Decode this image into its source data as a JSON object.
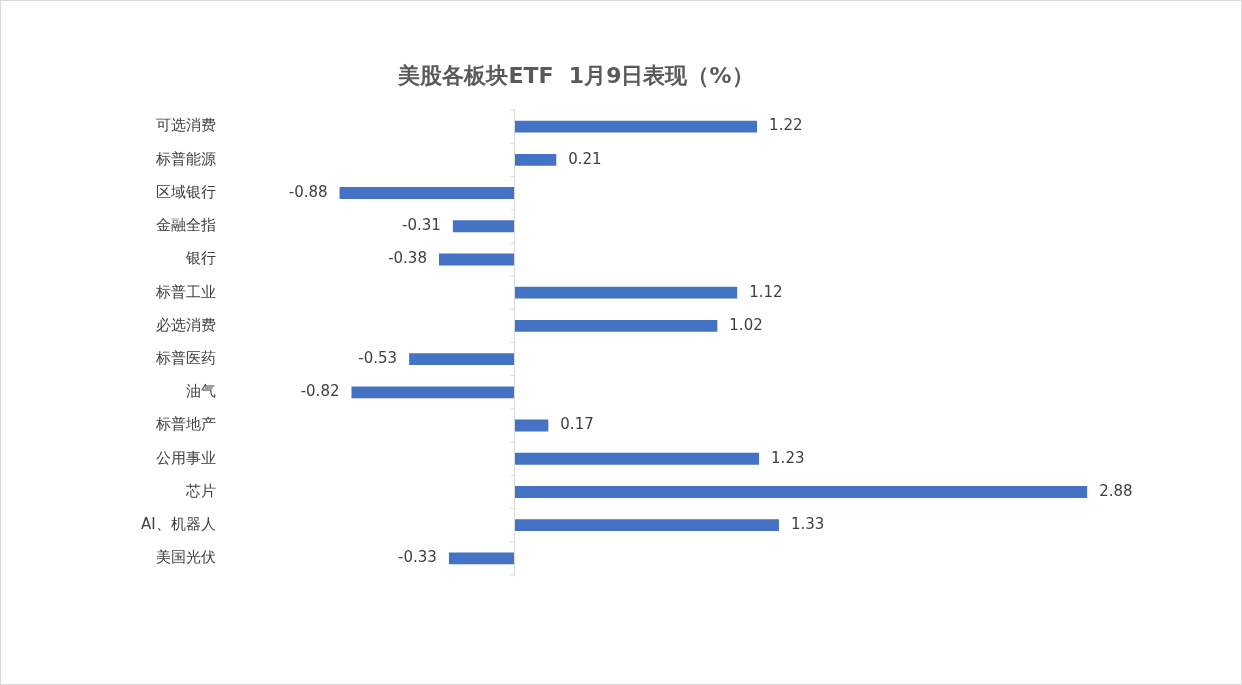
{
  "chart_data": {
    "type": "bar",
    "title": "美股各板块ETF  1月9日表现（%）",
    "orientation": "horizontal",
    "categories": [
      "可选消费",
      "标普能源",
      "区域银行",
      "金融全指",
      "银行",
      "标普工业",
      "必选消费",
      "标普医药",
      "油气",
      "标普地产",
      "公用事业",
      "芯片",
      "AI、机器人",
      "美国光伏"
    ],
    "values": [
      1.22,
      0.21,
      -0.88,
      -0.31,
      -0.38,
      1.12,
      1.02,
      -0.53,
      -0.82,
      0.17,
      1.23,
      2.88,
      1.33,
      -0.33
    ],
    "color": "#4472c4",
    "data_labels": true,
    "legend": false
  }
}
